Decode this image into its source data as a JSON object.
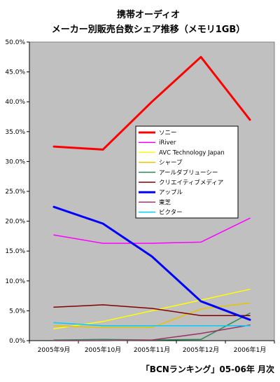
{
  "chart_data": {
    "type": "line",
    "title_line1": "携帯オーディオ",
    "title_line2": "メーカー別販売台数シェア推移（メモリ1GB）",
    "source": "「BCNランキング」05-06年 月次",
    "categories": [
      "2005年9月",
      "2005年10月",
      "2005年11月",
      "2005年12月",
      "2006年1月"
    ],
    "ylim": [
      0,
      50
    ],
    "yticks": [
      "0.0%",
      "5.0%",
      "10.0%",
      "15.0%",
      "20.0%",
      "25.0%",
      "30.0%",
      "35.0%",
      "40.0%",
      "45.0%",
      "50.0%"
    ],
    "grid": false,
    "plot_background": "#c0c0c0",
    "legend_position": "center-right",
    "series": [
      {
        "name": "ソニー",
        "color": "#ff0000",
        "width": 3,
        "values": [
          32.5,
          32.0,
          40.0,
          47.5,
          37.0
        ]
      },
      {
        "name": "iRiver",
        "color": "#ff00ff",
        "width": 1.5,
        "values": [
          17.7,
          16.3,
          16.3,
          16.5,
          20.5
        ]
      },
      {
        "name": "AVC Technology Japan",
        "color": "#ffff00",
        "width": 1.5,
        "values": [
          2.0,
          3.2,
          5.0,
          6.8,
          8.6
        ]
      },
      {
        "name": "シャープ",
        "color": "#e6c300",
        "width": 1.5,
        "values": [
          2.5,
          2.2,
          2.2,
          5.3,
          6.3
        ]
      },
      {
        "name": "アールダブリューシー",
        "color": "#2e8b57",
        "width": 1.5,
        "values": [
          0.1,
          0.2,
          0.1,
          0.2,
          4.6
        ]
      },
      {
        "name": "クリエイティブメディア",
        "color": "#800000",
        "width": 1.5,
        "values": [
          5.6,
          6.0,
          5.4,
          4.2,
          4.2
        ]
      },
      {
        "name": "アップル",
        "color": "#0000ff",
        "width": 3,
        "values": [
          22.4,
          19.6,
          14.1,
          6.6,
          3.5
        ]
      },
      {
        "name": "東芝",
        "color": "#993366",
        "width": 1.5,
        "values": [
          0.0,
          0.0,
          0.1,
          1.2,
          2.6
        ]
      },
      {
        "name": "ビクター",
        "color": "#00ccff",
        "width": 1.5,
        "values": [
          3.0,
          2.5,
          2.5,
          2.5,
          2.5
        ]
      }
    ]
  }
}
